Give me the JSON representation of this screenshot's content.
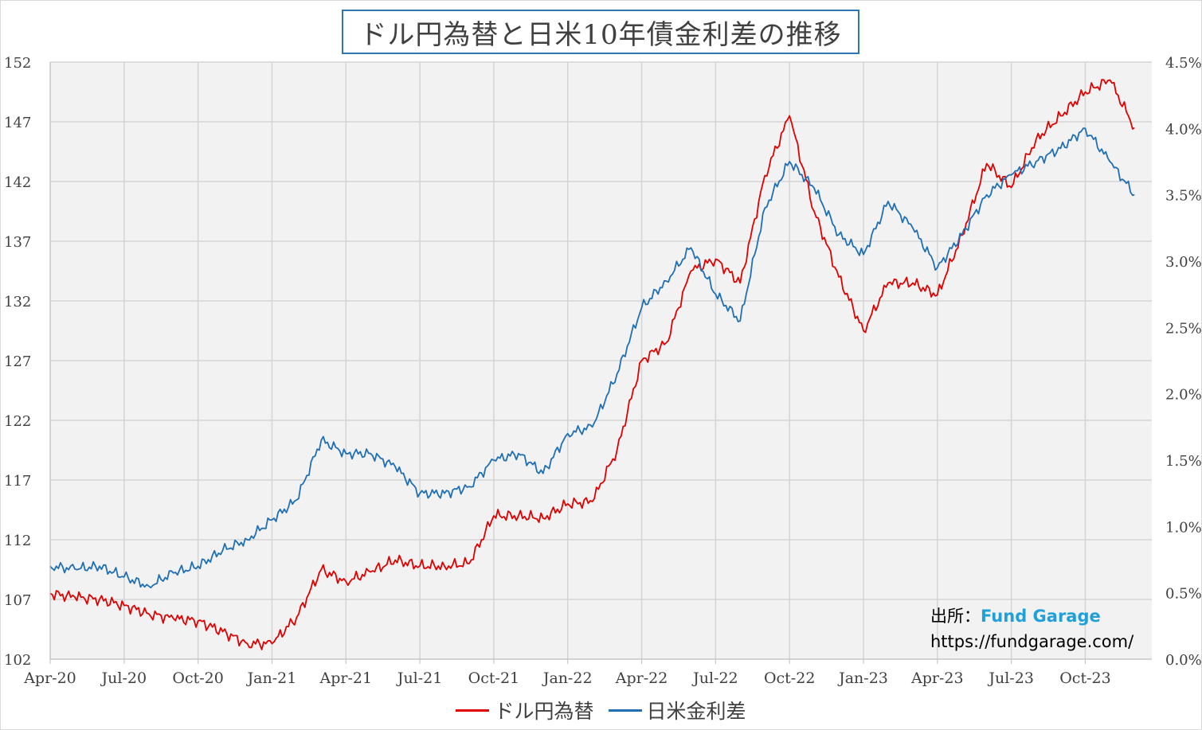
{
  "chart_data": {
    "type": "line",
    "title": "ドル円為替と日米10年債金利差の推移",
    "x_labels": [
      "Apr-20",
      "Jul-20",
      "Oct-20",
      "Jan-21",
      "Apr-21",
      "Jul-21",
      "Oct-21",
      "Jan-22",
      "Apr-22",
      "Jul-22",
      "Oct-22",
      "Jan-23",
      "Apr-23",
      "Jul-23",
      "Oct-23"
    ],
    "x_range": [
      "2020-04",
      "2023-12"
    ],
    "y_left": {
      "min": 102,
      "max": 152,
      "ticks": [
        102,
        107,
        112,
        117,
        122,
        127,
        132,
        137,
        142,
        147,
        152
      ]
    },
    "y_right": {
      "min": 0.0,
      "max": 4.5,
      "ticks": [
        "0.0%",
        "0.5%",
        "1.0%",
        "1.5%",
        "2.0%",
        "2.5%",
        "3.0%",
        "3.5%",
        "4.0%",
        "4.5%"
      ]
    },
    "grid": true,
    "legend_position": "bottom",
    "series": [
      {
        "name": "ドル円為替",
        "axis": "left",
        "color": "#e00000",
        "x": [
          "2020-04",
          "2020-05",
          "2020-06",
          "2020-07",
          "2020-08",
          "2020-09",
          "2020-10",
          "2020-11",
          "2020-12",
          "2021-01",
          "2021-02",
          "2021-03",
          "2021-04",
          "2021-05",
          "2021-06",
          "2021-07",
          "2021-08",
          "2021-09",
          "2021-10",
          "2021-11",
          "2021-12",
          "2022-01",
          "2022-02",
          "2022-03",
          "2022-04",
          "2022-05",
          "2022-06",
          "2022-07",
          "2022-08",
          "2022-09",
          "2022-10",
          "2022-11",
          "2022-12",
          "2023-01",
          "2023-02",
          "2023-03",
          "2023-04",
          "2023-05",
          "2023-06",
          "2023-07",
          "2023-08",
          "2023-09",
          "2023-10",
          "2023-11",
          "2023-12"
        ],
        "values": [
          107.5,
          107.2,
          107.0,
          106.5,
          105.8,
          105.4,
          105.2,
          104.3,
          103.3,
          103.3,
          105.5,
          109.5,
          108.5,
          109.3,
          110.3,
          109.8,
          109.8,
          110.0,
          114.0,
          114.0,
          113.8,
          115.0,
          115.2,
          119.5,
          127.0,
          128.5,
          134.5,
          135.5,
          133.5,
          142.5,
          147.5,
          139.5,
          134.0,
          129.5,
          133.5,
          133.5,
          132.5,
          137.5,
          143.5,
          141.5,
          145.5,
          147.5,
          149.5,
          150.5,
          146.5
        ]
      },
      {
        "name": "日米金利差",
        "axis": "right",
        "color": "#1f6fb4",
        "x": [
          "2020-04",
          "2020-05",
          "2020-06",
          "2020-07",
          "2020-08",
          "2020-09",
          "2020-10",
          "2020-11",
          "2020-12",
          "2021-01",
          "2021-02",
          "2021-03",
          "2021-04",
          "2021-05",
          "2021-06",
          "2021-07",
          "2021-08",
          "2021-09",
          "2021-10",
          "2021-11",
          "2021-12",
          "2022-01",
          "2022-02",
          "2022-03",
          "2022-04",
          "2022-05",
          "2022-06",
          "2022-07",
          "2022-08",
          "2022-09",
          "2022-10",
          "2022-11",
          "2022-12",
          "2023-01",
          "2023-02",
          "2023-03",
          "2023-04",
          "2023-05",
          "2023-06",
          "2023-07",
          "2023-08",
          "2023-09",
          "2023-10",
          "2023-11",
          "2023-12"
        ],
        "values": [
          0.7,
          0.68,
          0.7,
          0.62,
          0.55,
          0.65,
          0.7,
          0.82,
          0.9,
          1.05,
          1.2,
          1.65,
          1.55,
          1.55,
          1.45,
          1.25,
          1.25,
          1.3,
          1.5,
          1.55,
          1.4,
          1.7,
          1.75,
          2.15,
          2.65,
          2.85,
          3.1,
          2.75,
          2.55,
          3.4,
          3.75,
          3.55,
          3.2,
          3.05,
          3.45,
          3.25,
          2.95,
          3.2,
          3.5,
          3.65,
          3.75,
          3.85,
          4.0,
          3.75,
          3.5
        ]
      }
    ]
  },
  "source": {
    "label": "出所：",
    "name": "Fund Garage",
    "url": "https://fundgarage.com/"
  }
}
